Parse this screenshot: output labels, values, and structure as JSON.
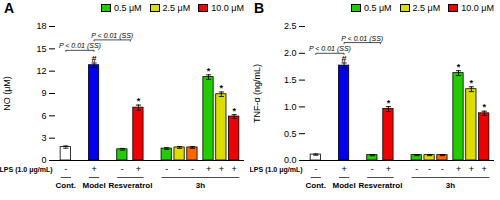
{
  "chart_data": [
    {
      "type": "bar",
      "title": "A",
      "ylabel": "NO (μM)",
      "xlabel": "LPS (1.0 μg/mL)",
      "groups": [
        "Cont.",
        "Model",
        "Resveratrol",
        "Resveratrol",
        "3h",
        "3h",
        "3h",
        "3h",
        "3h",
        "3h"
      ],
      "categories": [
        "-",
        "+",
        "-",
        "+",
        "-",
        "-",
        "-",
        "+",
        "+",
        "+"
      ],
      "values": [
        1.8,
        12.8,
        1.5,
        7.1,
        1.6,
        1.75,
        1.75,
        11.2,
        8.9,
        5.9
      ],
      "errors": [
        0.15,
        0.3,
        0.12,
        0.35,
        0.12,
        0.12,
        0.12,
        0.3,
        0.3,
        0.25
      ],
      "colors": [
        "#ffffff",
        "#0000ee",
        "#22cc00",
        "#ee0000",
        "#22cc00",
        "#dddd00",
        "#ff6600",
        "#22cc00",
        "#dddd00",
        "#ee0000"
      ],
      "bar_annotations": [
        null,
        "#",
        null,
        "*",
        null,
        null,
        null,
        "*",
        "*",
        "*"
      ],
      "brackets": [
        {
          "from": "Cont.",
          "to": "Model",
          "y": 14.8,
          "label": "P < 0.01 (SS)"
        },
        {
          "from": "Model",
          "to": "Resveratrol",
          "y": 16.2,
          "label": "P < 0.01 (SS)"
        }
      ],
      "ylim": [
        0,
        18
      ],
      "yticks": [
        0,
        3,
        6,
        9,
        12,
        15,
        18
      ],
      "grid": false,
      "legend": "upper right",
      "legend_entries": [
        {
          "name": "0.5 μM",
          "color": "#22cc00"
        },
        {
          "name": "2.5 μM",
          "color": "#dddd00"
        },
        {
          "name": "10.0 μM",
          "color": "#ee0000"
        }
      ]
    },
    {
      "type": "bar",
      "title": "B",
      "ylabel": "TNF-α (ng/mL)",
      "xlabel": "LPS (1.0 μg/mL)",
      "groups": [
        "Cont.",
        "Model",
        "Resveratrol",
        "Resveratrol",
        "3h",
        "3h",
        "3h",
        "3h",
        "3h",
        "3h"
      ],
      "categories": [
        "-",
        "+",
        "-",
        "+",
        "-",
        "-",
        "-",
        "+",
        "+",
        "+"
      ],
      "values": [
        0.11,
        1.77,
        0.1,
        0.96,
        0.1,
        0.1,
        0.1,
        1.63,
        1.33,
        0.88
      ],
      "errors": [
        0.012,
        0.05,
        0.01,
        0.045,
        0.01,
        0.01,
        0.01,
        0.045,
        0.045,
        0.04
      ],
      "colors": [
        "#ffffff",
        "#0000ee",
        "#22cc00",
        "#ee0000",
        "#22cc00",
        "#dddd00",
        "#ff6600",
        "#22cc00",
        "#dddd00",
        "#ee0000"
      ],
      "bar_annotations": [
        null,
        "#",
        null,
        "*",
        null,
        null,
        null,
        "*",
        "*",
        "*"
      ],
      "brackets": [
        {
          "from": "Cont.",
          "to": "Model",
          "y": 2.0,
          "label": "P < 0.01 (SS)"
        },
        {
          "from": "Model",
          "to": "Resveratrol",
          "y": 2.2,
          "label": "P < 0.01 (SS)"
        }
      ],
      "ylim": [
        0,
        2.5
      ],
      "yticks": [
        {
          "value": 0,
          "label": "0.0"
        },
        0.5,
        {
          "value": 1,
          "label": "1.0"
        },
        1.5,
        {
          "value": 2,
          "label": "2.0"
        },
        2.5
      ],
      "grid": false,
      "legend": "upper right",
      "legend_entries": [
        {
          "name": "0.5 μM",
          "color": "#22cc00"
        },
        {
          "name": "2.5 μM",
          "color": "#dddd00"
        },
        {
          "name": "10.0 μM",
          "color": "#ee0000"
        }
      ]
    }
  ]
}
